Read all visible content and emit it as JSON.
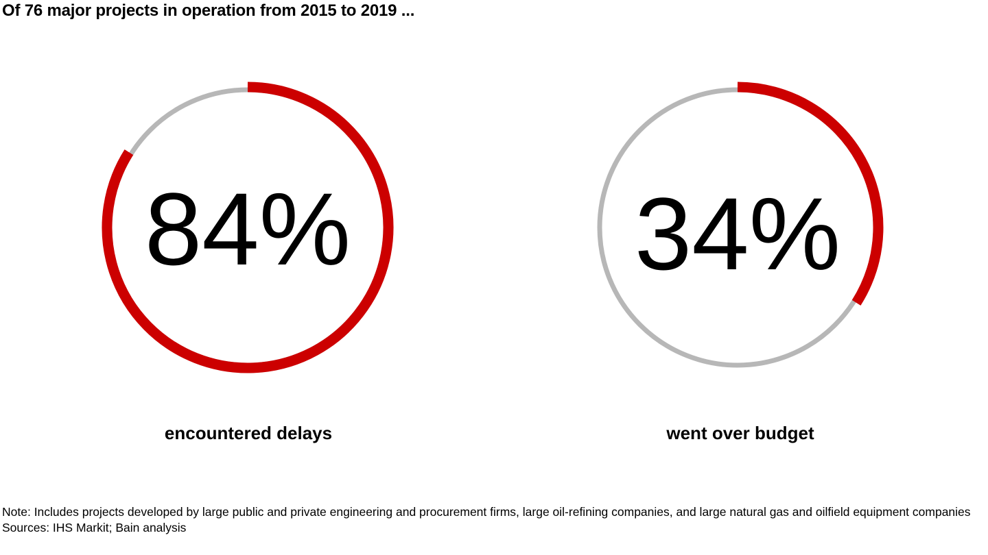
{
  "title": "Of 76 major projects in operation from 2015 to 2019 ...",
  "colors": {
    "accent": "#cc0000",
    "track": "#b7b7b7",
    "text": "#000000"
  },
  "chart_data": [
    {
      "type": "pie",
      "subtype": "donut-progress",
      "value": 84,
      "remainder": 16,
      "display": "84%",
      "label": "encountered delays",
      "unit": "%"
    },
    {
      "type": "pie",
      "subtype": "donut-progress",
      "value": 34,
      "remainder": 66,
      "display": "34%",
      "label": "went over budget",
      "unit": "%"
    }
  ],
  "footer": {
    "note": "Note: Includes projects developed by large public and private engineering and procurement firms, large oil-refining companies, and large natural gas and oilfield equipment companies",
    "sources": "Sources: IHS Markit; Bain analysis"
  }
}
